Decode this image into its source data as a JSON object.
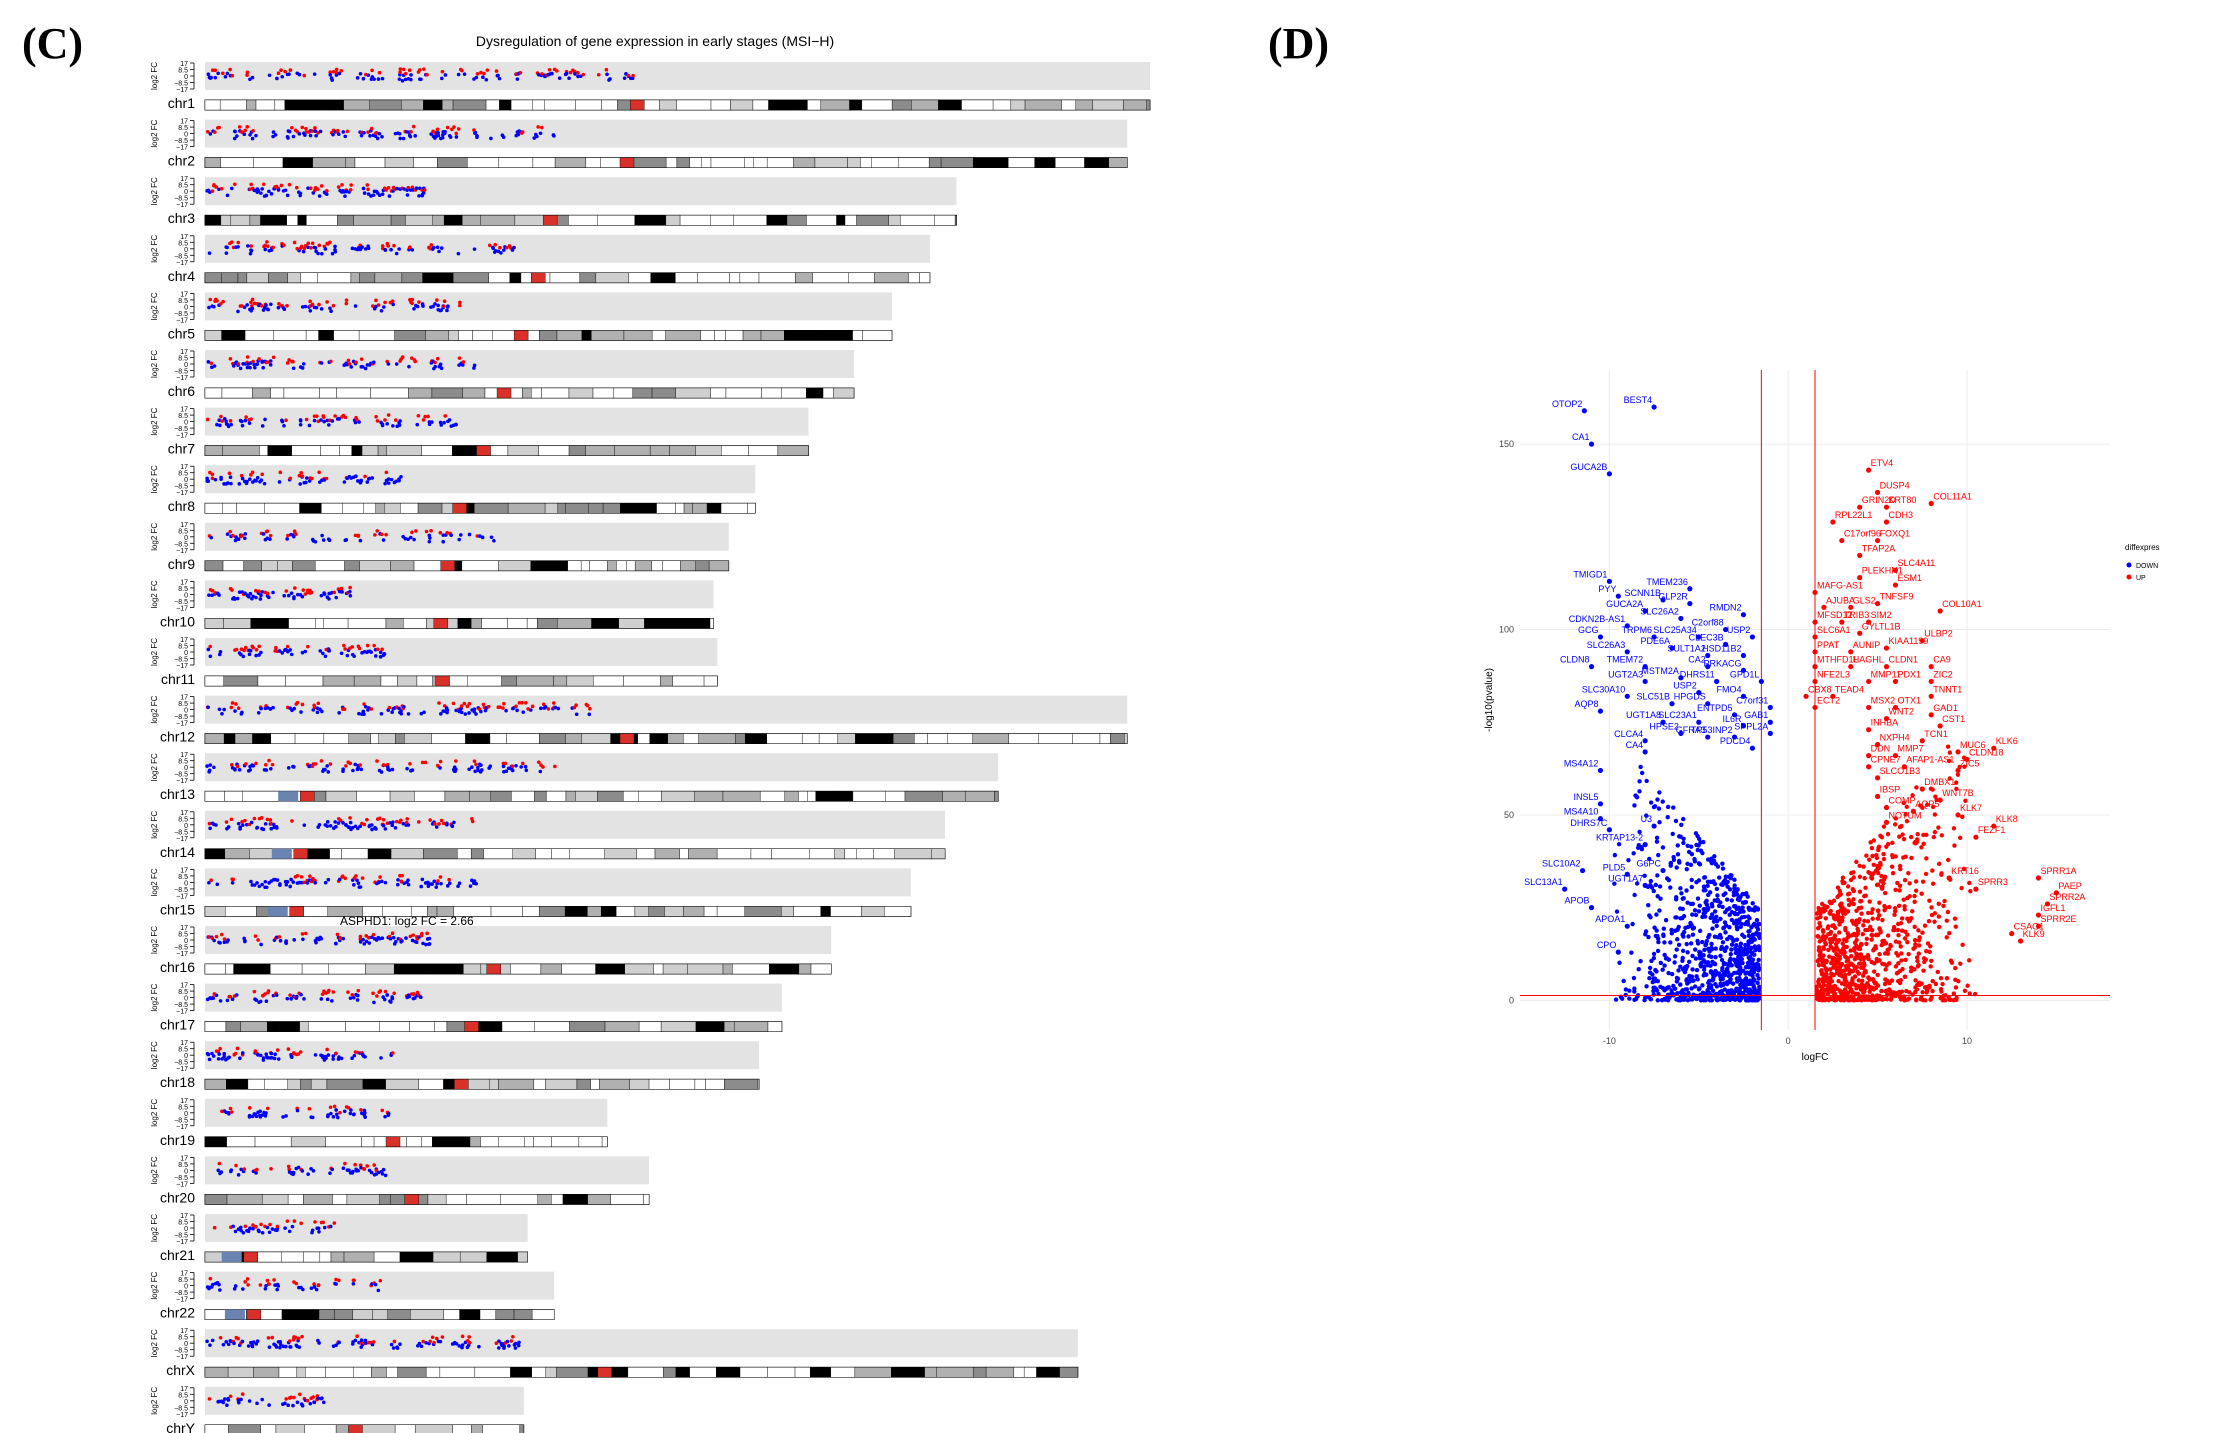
{
  "panels": {
    "left_label": "(C)",
    "right_label": "(D)"
  },
  "chart_data": [
    {
      "type": "scatter",
      "subtype": "chromosome-ideogram-expression",
      "title": "Dysregulation  of gene expression in early stages (MSI−H)",
      "ylabel": "log2 FC",
      "yticks": [
        "17",
        "8.5",
        "0",
        "−8.5",
        "−17"
      ],
      "ylim": [
        -17,
        17
      ],
      "annotation": "ASPHD1: log2 FC = 2.66",
      "annotation_chromosome": "chr16",
      "colors": {
        "up": "#ff0000",
        "down": "#0000ff",
        "track": "#e3e3e3",
        "centromere": "#d9302a",
        "heterochromatin": "#6a83b0"
      },
      "chromosomes": [
        {
          "name": "chr1",
          "length_mb": 249
        },
        {
          "name": "chr2",
          "length_mb": 243
        },
        {
          "name": "chr3",
          "length_mb": 198
        },
        {
          "name": "chr4",
          "length_mb": 191
        },
        {
          "name": "chr5",
          "length_mb": 181
        },
        {
          "name": "chr6",
          "length_mb": 171
        },
        {
          "name": "chr7",
          "length_mb": 159
        },
        {
          "name": "chr8",
          "length_mb": 145
        },
        {
          "name": "chr9",
          "length_mb": 138
        },
        {
          "name": "chr10",
          "length_mb": 134
        },
        {
          "name": "chr11",
          "length_mb": 135
        },
        {
          "name": "chr12",
          "length_mb": 243
        },
        {
          "name": "chr13",
          "length_mb": 209
        },
        {
          "name": "chr14",
          "length_mb": 195
        },
        {
          "name": "chr15",
          "length_mb": 186
        },
        {
          "name": "chr16",
          "length_mb": 165
        },
        {
          "name": "chr17",
          "length_mb": 152
        },
        {
          "name": "chr18",
          "length_mb": 146
        },
        {
          "name": "chr19",
          "length_mb": 106
        },
        {
          "name": "chr20",
          "length_mb": 117
        },
        {
          "name": "chr21",
          "length_mb": 85
        },
        {
          "name": "chr22",
          "length_mb": 92
        },
        {
          "name": "chrX",
          "length_mb": 230
        },
        {
          "name": "chrY",
          "length_mb": 84
        }
      ]
    },
    {
      "type": "scatter",
      "subtype": "volcano",
      "title": "",
      "xlabel": "logFC",
      "ylabel": "-log10(pvalue)",
      "xlim": [
        -15,
        18
      ],
      "ylim": [
        -8,
        170
      ],
      "xticks": [
        -10,
        0,
        10
      ],
      "yticks": [
        0,
        50,
        100,
        150
      ],
      "thresholds_x": [
        -1.5,
        1.5
      ],
      "threshold_y": 1.3,
      "legend": {
        "title": "diffexpressed",
        "entries": [
          {
            "label": "DOWN",
            "color": "#0000ff"
          },
          {
            "label": "UP",
            "color": "#ff0000"
          }
        ],
        "position": "right"
      },
      "labeled_genes": [
        {
          "gene": "OTOP2",
          "x": -11.4,
          "y": 159
        },
        {
          "gene": "BEST4",
          "x": -7.5,
          "y": 160
        },
        {
          "gene": "CA1",
          "x": -11,
          "y": 150
        },
        {
          "gene": "GUCA2B",
          "x": -10,
          "y": 142
        },
        {
          "gene": "TMIGD1",
          "x": -10,
          "y": 113
        },
        {
          "gene": "TMEM236",
          "x": -5.5,
          "y": 111
        },
        {
          "gene": "PYY",
          "x": -9.5,
          "y": 109
        },
        {
          "gene": "SCNN1B",
          "x": -7,
          "y": 108
        },
        {
          "gene": "GLP2R",
          "x": -5.5,
          "y": 107
        },
        {
          "gene": "GUCA2A",
          "x": -8,
          "y": 105
        },
        {
          "gene": "SLC26A2",
          "x": -6,
          "y": 103
        },
        {
          "gene": "RMDN2",
          "x": -2.5,
          "y": 104
        },
        {
          "gene": "CDKN2B-AS1",
          "x": -9,
          "y": 101
        },
        {
          "gene": "C2orf88",
          "x": -3.5,
          "y": 100
        },
        {
          "gene": "TRPM6",
          "x": -7.5,
          "y": 98
        },
        {
          "gene": "SLC25A34",
          "x": -5,
          "y": 98
        },
        {
          "gene": "USP2",
          "x": -2,
          "y": 98
        },
        {
          "gene": "GCG",
          "x": -10.5,
          "y": 98
        },
        {
          "gene": "CLEC3B",
          "x": -3.5,
          "y": 96
        },
        {
          "gene": "SLC26A3",
          "x": -9,
          "y": 94
        },
        {
          "gene": "PDE6A",
          "x": -6.5,
          "y": 95
        },
        {
          "gene": "SULT1A2",
          "x": -4.5,
          "y": 93
        },
        {
          "gene": "HSD11B2",
          "x": -2.5,
          "y": 93
        },
        {
          "gene": "CLDN8",
          "x": -11,
          "y": 90
        },
        {
          "gene": "TMEM72",
          "x": -8,
          "y": 90
        },
        {
          "gene": "CA2",
          "x": -4.5,
          "y": 90
        },
        {
          "gene": "PRKACG",
          "x": -2.5,
          "y": 89
        },
        {
          "gene": "UGT2A3",
          "x": -8,
          "y": 86
        },
        {
          "gene": "MSTM2A",
          "x": -6,
          "y": 87
        },
        {
          "gene": "DHRS11",
          "x": -4,
          "y": 86
        },
        {
          "gene": "GPD1L",
          "x": -1.5,
          "y": 86
        },
        {
          "gene": "USP2",
          "x": -5,
          "y": 83
        },
        {
          "gene": "SLC30A10",
          "x": -9,
          "y": 82
        },
        {
          "gene": "FMO4",
          "x": -2.5,
          "y": 82
        },
        {
          "gene": "SLC51B",
          "x": -6.5,
          "y": 80
        },
        {
          "gene": "HPGDS",
          "x": -4.5,
          "y": 80
        },
        {
          "gene": "C7orf31",
          "x": -1,
          "y": 79
        },
        {
          "gene": "AQP8",
          "x": -10.5,
          "y": 78
        },
        {
          "gene": "ENTPD5",
          "x": -3,
          "y": 77
        },
        {
          "gene": "UGT1A8",
          "x": -7,
          "y": 75
        },
        {
          "gene": "SLC23A1",
          "x": -5,
          "y": 75
        },
        {
          "gene": "GAB1",
          "x": -1,
          "y": 75
        },
        {
          "gene": "IL6R",
          "x": -2.5,
          "y": 74
        },
        {
          "gene": "HPSE2",
          "x": -6,
          "y": 72
        },
        {
          "gene": "GFRA3",
          "x": -4.5,
          "y": 71
        },
        {
          "gene": "TP53INP2",
          "x": -3,
          "y": 71
        },
        {
          "gene": "SPPL2A",
          "x": -1,
          "y": 72
        },
        {
          "gene": "CLCA4",
          "x": -8,
          "y": 70
        },
        {
          "gene": "PDCD4",
          "x": -2,
          "y": 68
        },
        {
          "gene": "CA4",
          "x": -8,
          "y": 67
        },
        {
          "gene": "MS4A12",
          "x": -10.5,
          "y": 62
        },
        {
          "gene": "INSL5",
          "x": -10.5,
          "y": 53
        },
        {
          "gene": "MS4A10",
          "x": -10.5,
          "y": 49
        },
        {
          "gene": "U3",
          "x": -7.5,
          "y": 47
        },
        {
          "gene": "DHRS7C",
          "x": -10,
          "y": 46
        },
        {
          "gene": "KRTAP13-2",
          "x": -8,
          "y": 42
        },
        {
          "gene": "G6PC",
          "x": -7,
          "y": 35
        },
        {
          "gene": "SLC10A2",
          "x": -11.5,
          "y": 35
        },
        {
          "gene": "PLD5",
          "x": -9,
          "y": 34
        },
        {
          "gene": "SLC13A1",
          "x": -12.5,
          "y": 30
        },
        {
          "gene": "UGT1A7",
          "x": -8,
          "y": 31
        },
        {
          "gene": "APOB",
          "x": -11,
          "y": 25
        },
        {
          "gene": "APOA1",
          "x": -9,
          "y": 20
        },
        {
          "gene": "CPO",
          "x": -9.5,
          "y": 13
        },
        {
          "gene": "ETV4",
          "x": 4.5,
          "y": 143
        },
        {
          "gene": "DUSP4",
          "x": 5,
          "y": 137
        },
        {
          "gene": "GRIN2D",
          "x": 4,
          "y": 133
        },
        {
          "gene": "KRT80",
          "x": 5.5,
          "y": 133
        },
        {
          "gene": "COL11A1",
          "x": 8,
          "y": 134
        },
        {
          "gene": "RPL22L1",
          "x": 2.5,
          "y": 129
        },
        {
          "gene": "CDH3",
          "x": 5.5,
          "y": 129
        },
        {
          "gene": "C17orf96",
          "x": 3,
          "y": 124
        },
        {
          "gene": "FOXQ1",
          "x": 5,
          "y": 124
        },
        {
          "gene": "TFAP2A",
          "x": 4,
          "y": 120
        },
        {
          "gene": "SLC4A11",
          "x": 6,
          "y": 116
        },
        {
          "gene": "PLEKHN1",
          "x": 4,
          "y": 114
        },
        {
          "gene": "ESM1",
          "x": 6,
          "y": 112
        },
        {
          "gene": "MAFG-AS1",
          "x": 1.5,
          "y": 110
        },
        {
          "gene": "TNFSF9",
          "x": 5,
          "y": 107
        },
        {
          "gene": "AJUBA",
          "x": 2,
          "y": 106
        },
        {
          "gene": "GLS2",
          "x": 3.5,
          "y": 106
        },
        {
          "gene": "COL10A1",
          "x": 8.5,
          "y": 105
        },
        {
          "gene": "MFSD12",
          "x": 1.5,
          "y": 102
        },
        {
          "gene": "TRIB3",
          "x": 3,
          "y": 102
        },
        {
          "gene": "SIM2",
          "x": 4.5,
          "y": 102
        },
        {
          "gene": "SLC6A1",
          "x": 1.5,
          "y": 98
        },
        {
          "gene": "GYLTL1B",
          "x": 4,
          "y": 99
        },
        {
          "gene": "ULBP2",
          "x": 7.5,
          "y": 97
        },
        {
          "gene": "PPAT",
          "x": 1.5,
          "y": 94
        },
        {
          "gene": "AUNIP",
          "x": 3.5,
          "y": 94
        },
        {
          "gene": "KIAA1199",
          "x": 5.5,
          "y": 95
        },
        {
          "gene": "MTHFD1L",
          "x": 1.5,
          "y": 90
        },
        {
          "gene": "HAGHL",
          "x": 3.5,
          "y": 90
        },
        {
          "gene": "CLDN1",
          "x": 5.5,
          "y": 90
        },
        {
          "gene": "CA9",
          "x": 8,
          "y": 90
        },
        {
          "gene": "NFE2L3",
          "x": 1.5,
          "y": 86
        },
        {
          "gene": "MMP11",
          "x": 4.5,
          "y": 86
        },
        {
          "gene": "PDX1",
          "x": 6,
          "y": 86
        },
        {
          "gene": "ZIC2",
          "x": 8,
          "y": 86
        },
        {
          "gene": "CBX8",
          "x": 1,
          "y": 82
        },
        {
          "gene": "TEAD4",
          "x": 2.5,
          "y": 82
        },
        {
          "gene": "TNNT1",
          "x": 8,
          "y": 82
        },
        {
          "gene": "ECT2",
          "x": 1.5,
          "y": 79
        },
        {
          "gene": "MSX2",
          "x": 4.5,
          "y": 79
        },
        {
          "gene": "OTX1",
          "x": 6,
          "y": 79
        },
        {
          "gene": "GAD1",
          "x": 8,
          "y": 77
        },
        {
          "gene": "WNT2",
          "x": 5.5,
          "y": 76
        },
        {
          "gene": "CST1",
          "x": 8.5,
          "y": 74
        },
        {
          "gene": "INHBA",
          "x": 4.5,
          "y": 73
        },
        {
          "gene": "TCN1",
          "x": 7.5,
          "y": 70
        },
        {
          "gene": "NXPH4",
          "x": 5,
          "y": 69
        },
        {
          "gene": "MUC6",
          "x": 9.5,
          "y": 67
        },
        {
          "gene": "KLK6",
          "x": 11.5,
          "y": 68
        },
        {
          "gene": "DDN",
          "x": 4.5,
          "y": 66
        },
        {
          "gene": "MMP7",
          "x": 6,
          "y": 66
        },
        {
          "gene": "CLDN18",
          "x": 10,
          "y": 65
        },
        {
          "gene": "CPNE7",
          "x": 4.5,
          "y": 63
        },
        {
          "gene": "AFAP1-AS1",
          "x": 6.5,
          "y": 63
        },
        {
          "gene": "ZIC5",
          "x": 9.5,
          "y": 62
        },
        {
          "gene": "SLCO1B3",
          "x": 5,
          "y": 60
        },
        {
          "gene": "DMBX1",
          "x": 7.5,
          "y": 57
        },
        {
          "gene": "IBSP",
          "x": 5,
          "y": 55
        },
        {
          "gene": "WNT7B",
          "x": 8.5,
          "y": 54
        },
        {
          "gene": "COMP",
          "x": 5.5,
          "y": 52
        },
        {
          "gene": "AQP5",
          "x": 7,
          "y": 51
        },
        {
          "gene": "KLK7",
          "x": 9.5,
          "y": 50
        },
        {
          "gene": "NOTUM",
          "x": 5.5,
          "y": 48
        },
        {
          "gene": "KLK8",
          "x": 11.5,
          "y": 47
        },
        {
          "gene": "FEZF1",
          "x": 10.5,
          "y": 44
        },
        {
          "gene": "KRT16",
          "x": 9,
          "y": 33
        },
        {
          "gene": "SPRR1A",
          "x": 14,
          "y": 33
        },
        {
          "gene": "SPRR3",
          "x": 10.5,
          "y": 30
        },
        {
          "gene": "PAEP",
          "x": 15,
          "y": 29
        },
        {
          "gene": "SPRR2A",
          "x": 14.5,
          "y": 26
        },
        {
          "gene": "IGFL1",
          "x": 14,
          "y": 23
        },
        {
          "gene": "SPRR2E",
          "x": 14,
          "y": 20
        },
        {
          "gene": "CSAG1",
          "x": 12.5,
          "y": 18
        },
        {
          "gene": "KLK9",
          "x": 13,
          "y": 16
        }
      ]
    }
  ]
}
